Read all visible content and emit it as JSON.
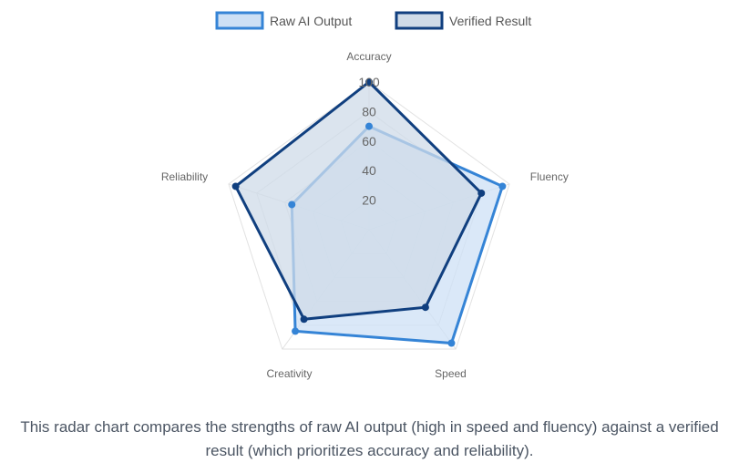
{
  "chart_data": {
    "type": "radar",
    "axes": [
      "Accuracy",
      "Fluency",
      "Speed",
      "Creativity",
      "Reliability"
    ],
    "r_ticks": [
      20,
      40,
      60,
      80,
      100
    ],
    "r_range": [
      0,
      100
    ],
    "tick_label_texts": [
      "20",
      "40",
      "60",
      "80",
      "100"
    ],
    "legend_position": "top",
    "grid": true,
    "series": [
      {
        "name": "Raw AI Output",
        "values": [
          70,
          95,
          95,
          85,
          55
        ],
        "stroke": "#3584d6",
        "fill": "#cde0f5"
      },
      {
        "name": "Verified Result",
        "values": [
          100,
          80,
          65,
          75,
          95
        ],
        "stroke": "#103f7f",
        "fill": "#cfdbe8"
      }
    ],
    "grid_color": "#e2e2e2"
  },
  "caption": "This radar chart compares the strengths of raw AI output (high in speed and fluency) against a verified result (which prioritizes accuracy and reliability)."
}
